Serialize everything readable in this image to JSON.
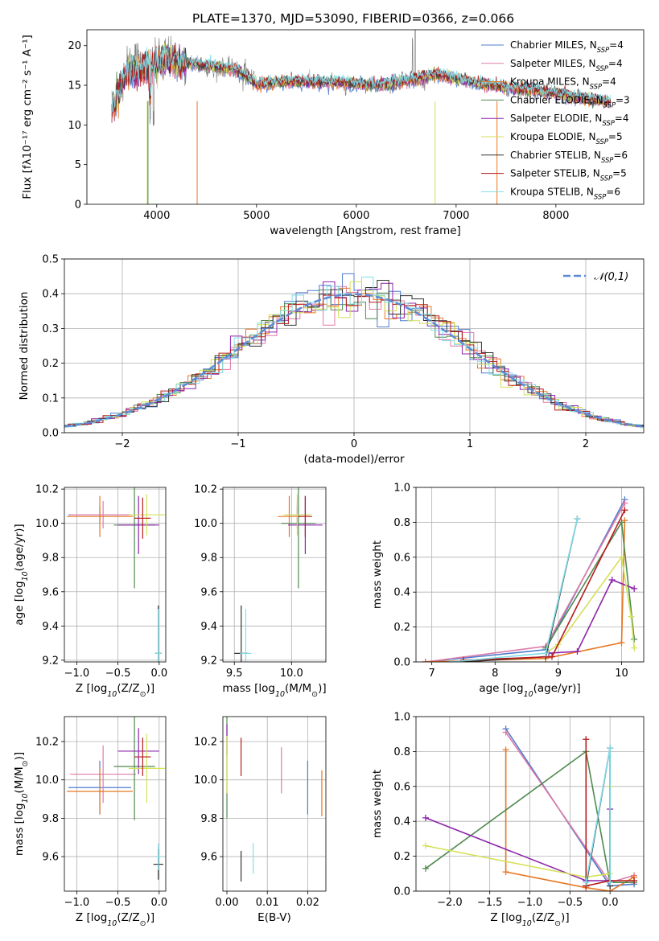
{
  "figure": {
    "background": "#ffffff"
  },
  "chart_data": [
    {
      "id": "spectrum",
      "type": "line",
      "title": "PLATE=1370, MJD=53090, FIBERID=0366, z=0.066",
      "xlabel": "wavelength [Angstrom, rest frame]",
      "ylabel": "Flux [fλ10⁻¹⁷ erg cm⁻² s⁻¹ A⁻¹]",
      "xlim": [
        3300,
        8880
      ],
      "ylim": [
        0,
        22
      ],
      "xticks": [
        4000,
        5000,
        6000,
        7000,
        8000
      ],
      "yticks": [
        0,
        5,
        10,
        15,
        20
      ],
      "grid": false,
      "legend_position": "top-right",
      "data_color": "#808080",
      "data_x": [
        3550,
        3600,
        3700,
        3800,
        3900,
        4000,
        4100,
        4200,
        4300,
        4400,
        4500,
        4700,
        4900,
        5000,
        5200,
        5400,
        5600,
        5800,
        6000,
        6200,
        6400,
        6560,
        6600,
        6800,
        7000,
        7200,
        7400,
        7600,
        7800,
        8000,
        8200,
        8400,
        8550
      ],
      "data_y": [
        11.5,
        14.0,
        17.5,
        18.5,
        17.0,
        18.2,
        19.0,
        18.0,
        17.6,
        17.8,
        17.2,
        17.3,
        16.8,
        15.3,
        15.6,
        15.4,
        15.7,
        15.5,
        15.4,
        15.0,
        14.8,
        16.5,
        15.0,
        16.5,
        15.6,
        15.2,
        14.8,
        14.4,
        14.6,
        14.0,
        13.3,
        13.0,
        12.8
      ],
      "series": [
        {
          "name": "Chabrier MILES, N$_{SSP}$=4",
          "color": "#4f7ccf"
        },
        {
          "name": "Salpeter MILES, N$_{SSP}$=4",
          "color": "#e07aa8"
        },
        {
          "name": "Kroupa MILES, N$_{SSP}$=4",
          "color": "#e87722"
        },
        {
          "name": "Chabrier ELODIE, N$_{SSP}$=3",
          "color": "#4f8a4f"
        },
        {
          "name": "Salpeter ELODIE, N$_{SSP}$=4",
          "color": "#8e24aa"
        },
        {
          "name": "Kroupa ELODIE, N$_{SSP}$=5",
          "color": "#d4e157"
        },
        {
          "name": "Chabrier STELIB, N$_{SSP}$=6",
          "color": "#333333"
        },
        {
          "name": "Salpeter STELIB, N$_{SSP}$=5",
          "color": "#b71c1c"
        },
        {
          "name": "Kroupa STELIB, N$_{SSP}$=6",
          "color": "#80deea"
        }
      ],
      "model_x": [
        3550,
        3700,
        3900,
        4100,
        4400,
        4800,
        5000,
        5400,
        5800,
        6200,
        6600,
        6800,
        7200,
        7600,
        8000,
        8400,
        8550
      ],
      "model_y": [
        12.0,
        16.5,
        17.0,
        18.2,
        17.6,
        17.0,
        15.2,
        15.5,
        15.4,
        15.0,
        15.8,
        16.4,
        15.3,
        14.6,
        14.0,
        13.1,
        12.9
      ]
    },
    {
      "id": "residuals",
      "type": "histogram",
      "xlabel": "(data-model)/error",
      "ylabel": "Normed distribution",
      "xlim": [
        -2.5,
        2.5
      ],
      "ylim": [
        0,
        0.5
      ],
      "xticks": [
        -2,
        -1,
        0,
        1,
        2
      ],
      "yticks": [
        0.0,
        0.1,
        0.2,
        0.3,
        0.4,
        0.5
      ],
      "grid": true,
      "legend_position": "top-right",
      "gaussian_label": "$\\mathcal{N}(0,1)$",
      "gaussian_color": "#5b8bd6",
      "bin_width": 0.1,
      "series_colors": [
        "#4f7ccf",
        "#e07aa8",
        "#e87722",
        "#4f8a4f",
        "#8e24aa",
        "#d4e157",
        "#333333",
        "#b71c1c",
        "#80deea"
      ]
    },
    {
      "id": "age-vs-Z",
      "type": "scatter",
      "xlabel": "Z [log$_{10}$(Z/Z$_\\odot$)]",
      "ylabel": "age  [log$_{10}$(age/yr)]",
      "xlim": [
        -1.15,
        0.08
      ],
      "ylim": [
        9.19,
        10.21
      ],
      "xticks": [
        -1.0,
        -0.5,
        0.0
      ],
      "yticks": [
        9.2,
        9.4,
        9.6,
        9.8,
        10.0,
        10.2
      ],
      "grid": true,
      "points": [
        {
          "x": -0.72,
          "y": 10.05,
          "xerr": 0.38,
          "yerr": 0.05,
          "color": "#4f7ccf"
        },
        {
          "x": -0.68,
          "y": 10.05,
          "xerr": 0.4,
          "yerr": 0.08,
          "color": "#e07aa8"
        },
        {
          "x": -0.72,
          "y": 10.04,
          "xerr": 0.4,
          "yerr": 0.12,
          "color": "#e87722"
        },
        {
          "x": -0.3,
          "y": 9.99,
          "xerr": 0.25,
          "yerr": 0.37,
          "color": "#4f8a4f"
        },
        {
          "x": -0.25,
          "y": 9.99,
          "xerr": 0.25,
          "yerr": 0.17,
          "color": "#8e24aa"
        },
        {
          "x": -0.15,
          "y": 10.05,
          "xerr": 0.22,
          "yerr": 0.12,
          "color": "#d4e157"
        },
        {
          "x": -0.01,
          "y": 9.24,
          "xerr": 0.04,
          "yerr": 0.28,
          "color": "#333333"
        },
        {
          "x": -0.2,
          "y": 10.03,
          "xerr": 0.1,
          "yerr": 0.12,
          "color": "#b71c1c"
        },
        {
          "x": -0.01,
          "y": 9.24,
          "xerr": 0.04,
          "yerr": 0.26,
          "color": "#80deea"
        }
      ]
    },
    {
      "id": "age-vs-mass",
      "type": "scatter",
      "xlabel": "mass [log$_{10}$(M/M$_\\odot$)]",
      "ylabel": "",
      "xlim": [
        9.4,
        10.3
      ],
      "ylim": [
        9.19,
        10.21
      ],
      "xticks": [
        9.5,
        10.0
      ],
      "yticks": [
        9.2,
        9.4,
        9.6,
        9.8,
        10.0,
        10.2
      ],
      "grid": true,
      "points": [
        {
          "x": 10.05,
          "y": 10.05,
          "xerr": 0.1,
          "yerr": 0.05,
          "color": "#4f7ccf"
        },
        {
          "x": 10.05,
          "y": 10.05,
          "xerr": 0.1,
          "yerr": 0.08,
          "color": "#e07aa8"
        },
        {
          "x": 9.98,
          "y": 10.04,
          "xerr": 0.1,
          "yerr": 0.12,
          "color": "#e87722"
        },
        {
          "x": 10.06,
          "y": 10.0,
          "xerr": 0.15,
          "yerr": 0.38,
          "color": "#4f8a4f"
        },
        {
          "x": 10.12,
          "y": 9.99,
          "xerr": 0.15,
          "yerr": 0.17,
          "color": "#8e24aa"
        },
        {
          "x": 10.05,
          "y": 10.05,
          "xerr": 0.12,
          "yerr": 0.12,
          "color": "#d4e157"
        },
        {
          "x": 9.56,
          "y": 9.24,
          "xerr": 0.06,
          "yerr": 0.28,
          "color": "#333333"
        },
        {
          "x": 10.12,
          "y": 10.04,
          "xerr": 0.06,
          "yerr": 0.12,
          "color": "#b71c1c"
        },
        {
          "x": 9.6,
          "y": 9.24,
          "xerr": 0.05,
          "yerr": 0.26,
          "color": "#80deea"
        }
      ]
    },
    {
      "id": "weight-vs-age",
      "type": "line",
      "xlabel": "age  [log$_{10}$(age/yr)]",
      "ylabel": "mass weight",
      "xlim": [
        6.75,
        10.35
      ],
      "ylim": [
        0,
        1
      ],
      "xticks": [
        7,
        8,
        9,
        10
      ],
      "yticks": [
        0.0,
        0.2,
        0.4,
        0.6,
        0.8,
        1.0
      ],
      "grid": true,
      "series": [
        {
          "color": "#4f7ccf",
          "x": [
            6.9,
            8.8,
            10.05
          ],
          "y": [
            0.0,
            0.07,
            0.93
          ]
        },
        {
          "color": "#e07aa8",
          "x": [
            6.9,
            8.8,
            10.05
          ],
          "y": [
            0.0,
            0.09,
            0.91
          ]
        },
        {
          "color": "#e87722",
          "x": [
            6.9,
            8.8,
            10.0,
            10.05
          ],
          "y": [
            0.0,
            0.02,
            0.11,
            0.81
          ]
        },
        {
          "color": "#4f8a4f",
          "x": [
            8.8,
            10.0,
            10.2
          ],
          "y": [
            0.08,
            0.8,
            0.13
          ]
        },
        {
          "color": "#8e24aa",
          "x": [
            8.85,
            9.3,
            9.85,
            10.2
          ],
          "y": [
            0.05,
            0.06,
            0.47,
            0.42
          ]
        },
        {
          "color": "#d4e157",
          "x": [
            8.8,
            9.0,
            10.0,
            10.15,
            10.2
          ],
          "y": [
            0.05,
            0.1,
            0.6,
            0.26,
            0.08
          ]
        },
        {
          "color": "#333333",
          "x": [
            7.5,
            8.8,
            9.3
          ],
          "y": [
            0.0,
            0.03,
            0.82
          ]
        },
        {
          "color": "#b71c1c",
          "x": [
            7.5,
            8.9,
            10.05
          ],
          "y": [
            0.01,
            0.03,
            0.87
          ]
        },
        {
          "color": "#80deea",
          "x": [
            7.3,
            8.8,
            9.3
          ],
          "y": [
            0.0,
            0.05,
            0.82
          ]
        }
      ]
    },
    {
      "id": "mass-vs-Z",
      "type": "scatter",
      "xlabel": "Z [log$_{10}$(Z/Z$_\\odot$)]",
      "ylabel": "mass [log$_{10}$(M/M$_\\odot$)]",
      "xlim": [
        -1.15,
        0.08
      ],
      "ylim": [
        9.42,
        10.33
      ],
      "xticks": [
        -1.0,
        -0.5,
        0.0
      ],
      "yticks": [
        9.6,
        9.8,
        10.0,
        10.2
      ],
      "grid": true,
      "points": [
        {
          "x": -0.72,
          "y": 9.96,
          "xerr": 0.38,
          "yerr": 0.14,
          "color": "#4f7ccf"
        },
        {
          "x": -0.68,
          "y": 10.03,
          "xerr": 0.4,
          "yerr": 0.15,
          "color": "#e07aa8"
        },
        {
          "x": -0.72,
          "y": 9.94,
          "xerr": 0.4,
          "yerr": 0.12,
          "color": "#e87722"
        },
        {
          "x": -0.3,
          "y": 10.07,
          "xerr": 0.25,
          "yerr": 0.28,
          "color": "#4f8a4f"
        },
        {
          "x": -0.25,
          "y": 10.15,
          "xerr": 0.25,
          "yerr": 0.12,
          "color": "#8e24aa"
        },
        {
          "x": -0.15,
          "y": 10.06,
          "xerr": 0.22,
          "yerr": 0.18,
          "color": "#d4e157"
        },
        {
          "x": -0.01,
          "y": 9.56,
          "xerr": 0.06,
          "yerr": 0.08,
          "color": "#333333"
        },
        {
          "x": -0.2,
          "y": 10.12,
          "xerr": 0.1,
          "yerr": 0.1,
          "color": "#b71c1c"
        },
        {
          "x": -0.01,
          "y": 9.6,
          "xerr": 0.04,
          "yerr": 0.07,
          "color": "#80deea"
        }
      ]
    },
    {
      "id": "mass-vs-EBV",
      "type": "scatter",
      "xlabel": "E(B-V)",
      "ylabel": "",
      "xlim": [
        -0.001,
        0.0245
      ],
      "ylim": [
        9.42,
        10.33
      ],
      "xticks": [
        0.0,
        0.01,
        0.02
      ],
      "yticks": [
        9.6,
        9.8,
        10.0,
        10.2
      ],
      "grid": true,
      "points": [
        {
          "x": 0.02,
          "y": 9.96,
          "xerr": 0,
          "yerr": 0.14,
          "color": "#4f7ccf"
        },
        {
          "x": 0.0135,
          "y": 10.05,
          "xerr": 0,
          "yerr": 0.12,
          "color": "#e07aa8"
        },
        {
          "x": 0.0235,
          "y": 9.93,
          "xerr": 0,
          "yerr": 0.12,
          "color": "#e87722"
        },
        {
          "x": 0.0,
          "y": 10.08,
          "xerr": 0,
          "yerr": 0.28,
          "color": "#4f8a4f"
        },
        {
          "x": 0.0,
          "y": 10.21,
          "xerr": 0,
          "yerr": 0.08,
          "color": "#8e24aa"
        },
        {
          "x": 0.0,
          "y": 10.08,
          "xerr": 0,
          "yerr": 0.15,
          "color": "#d4e157"
        },
        {
          "x": 0.0035,
          "y": 9.55,
          "xerr": 0,
          "yerr": 0.08,
          "color": "#333333"
        },
        {
          "x": 0.0035,
          "y": 10.12,
          "xerr": 0,
          "yerr": 0.1,
          "color": "#b71c1c"
        },
        {
          "x": 0.0065,
          "y": 9.59,
          "xerr": 0,
          "yerr": 0.08,
          "color": "#80deea"
        }
      ]
    },
    {
      "id": "weight-vs-Z",
      "type": "line",
      "xlabel": "Z [log$_{10}$(Z/Z$_\\odot$)]",
      "ylabel": "mass weight",
      "xlim": [
        -2.42,
        0.42
      ],
      "ylim": [
        0,
        1
      ],
      "xticks": [
        -2.0,
        -1.5,
        -1.0,
        -0.5,
        0.0
      ],
      "yticks": [
        0.0,
        0.2,
        0.4,
        0.6,
        0.8,
        1.0
      ],
      "grid": true,
      "series": [
        {
          "color": "#4f7ccf",
          "x": [
            -1.3,
            0.0,
            0.3
          ],
          "y": [
            0.93,
            0.03,
            0.04
          ]
        },
        {
          "color": "#e07aa8",
          "x": [
            -1.3,
            0.0,
            0.3
          ],
          "y": [
            0.91,
            0.05,
            0.09
          ]
        },
        {
          "color": "#e87722",
          "x": [
            -1.3,
            -1.3,
            -0.3,
            0.0,
            0.3
          ],
          "y": [
            0.81,
            0.11,
            0.02,
            0.0,
            0.08
          ]
        },
        {
          "color": "#4f8a4f",
          "x": [
            -2.3,
            -0.3,
            0.0,
            0.3
          ],
          "y": [
            0.13,
            0.8,
            0.05,
            0.05
          ]
        },
        {
          "color": "#8e24aa",
          "x": [
            -2.3,
            -0.3,
            0.0,
            0.0
          ],
          "y": [
            0.42,
            0.06,
            0.06,
            0.47
          ]
        },
        {
          "color": "#d4e157",
          "x": [
            -2.3,
            -0.3,
            0.0,
            0.0
          ],
          "y": [
            0.26,
            0.08,
            0.1,
            0.6
          ]
        },
        {
          "color": "#333333",
          "x": [
            -0.3,
            0.0,
            0.0
          ],
          "y": [
            0.03,
            0.82,
            0.03
          ]
        },
        {
          "color": "#b71c1c",
          "x": [
            -0.3,
            -0.3,
            0.0,
            0.3
          ],
          "y": [
            0.87,
            0.03,
            0.06,
            0.06
          ]
        },
        {
          "color": "#80deea",
          "x": [
            -0.3,
            0.0,
            0.0
          ],
          "y": [
            0.05,
            0.82,
            0.05
          ]
        }
      ]
    }
  ]
}
